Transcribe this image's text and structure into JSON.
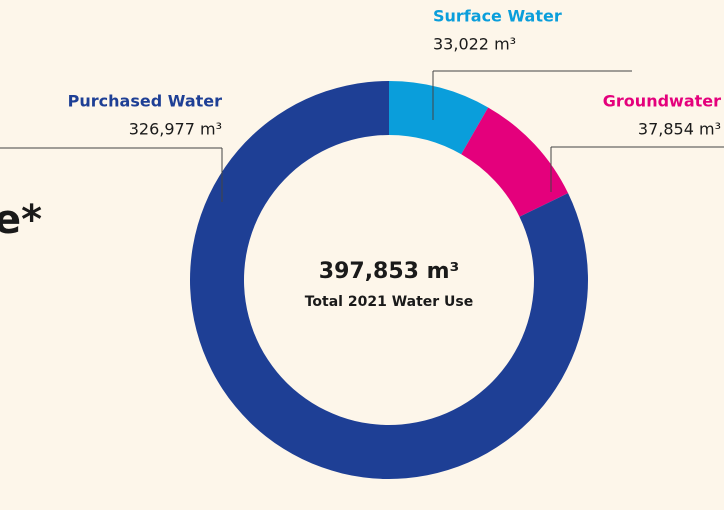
{
  "chart_data": {
    "type": "donut",
    "title": "e*",
    "categories": [
      "Surface Water",
      "Groundwater",
      "Purchased Water"
    ],
    "values": [
      33022,
      37854,
      326977
    ],
    "value_labels": [
      "33,022 m³",
      "37,854 m³",
      "326,977 m³"
    ],
    "colors": [
      "#0a9edb",
      "#e4007c",
      "#1e3f95"
    ],
    "total_label": "397,853 m³",
    "total_caption": "Total 2021 Water Use"
  }
}
